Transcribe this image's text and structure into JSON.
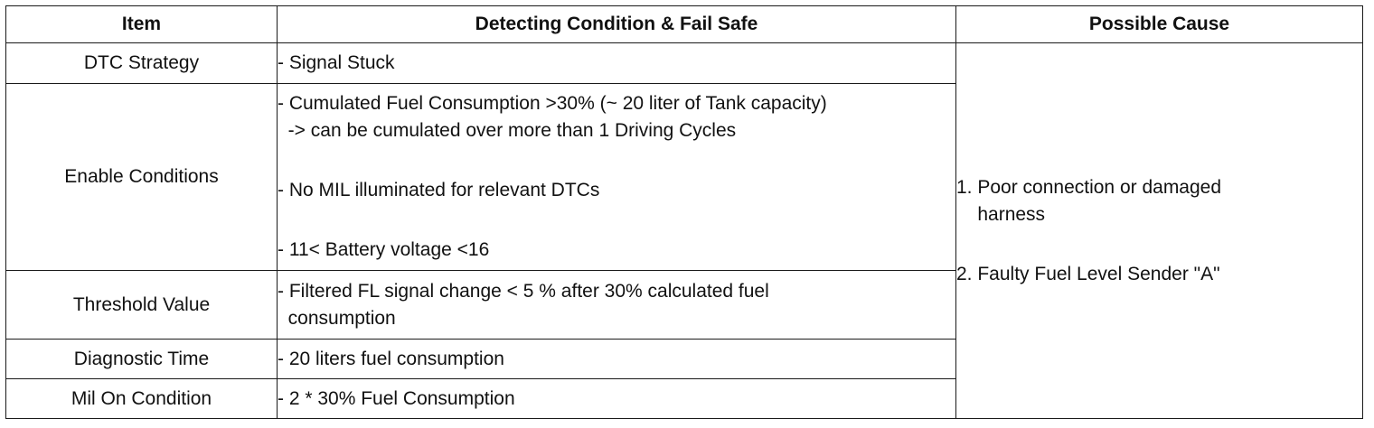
{
  "headers": {
    "item": "Item",
    "condition": "Detecting Condition & Fail Safe",
    "cause": "Possible Cause"
  },
  "rows": [
    {
      "item": "DTC Strategy",
      "lines": [
        "- Signal Stuck"
      ]
    },
    {
      "item": "Enable Conditions",
      "lines": [
        "- Cumulated Fuel Consumption >30% (~ 20 liter of Tank capacity)",
        "  -> can be cumulated over more than 1 Driving Cycles",
        "- No MIL illuminated for relevant DTCs",
        "- 11< Battery voltage <16"
      ]
    },
    {
      "item": "Threshold Value",
      "lines": [
        "- Filtered FL signal change < 5 % after 30% calculated fuel",
        "  consumption"
      ]
    },
    {
      "item": "Diagnostic Time",
      "lines": [
        "- 20 liters fuel consumption"
      ]
    },
    {
      "item": "Mil On Condition",
      "lines": [
        "- 2 * 30% Fuel Consumption"
      ]
    }
  ],
  "causes": [
    "1. Poor connection or damaged",
    "    harness",
    "2. Faulty Fuel Level Sender \"A\""
  ]
}
